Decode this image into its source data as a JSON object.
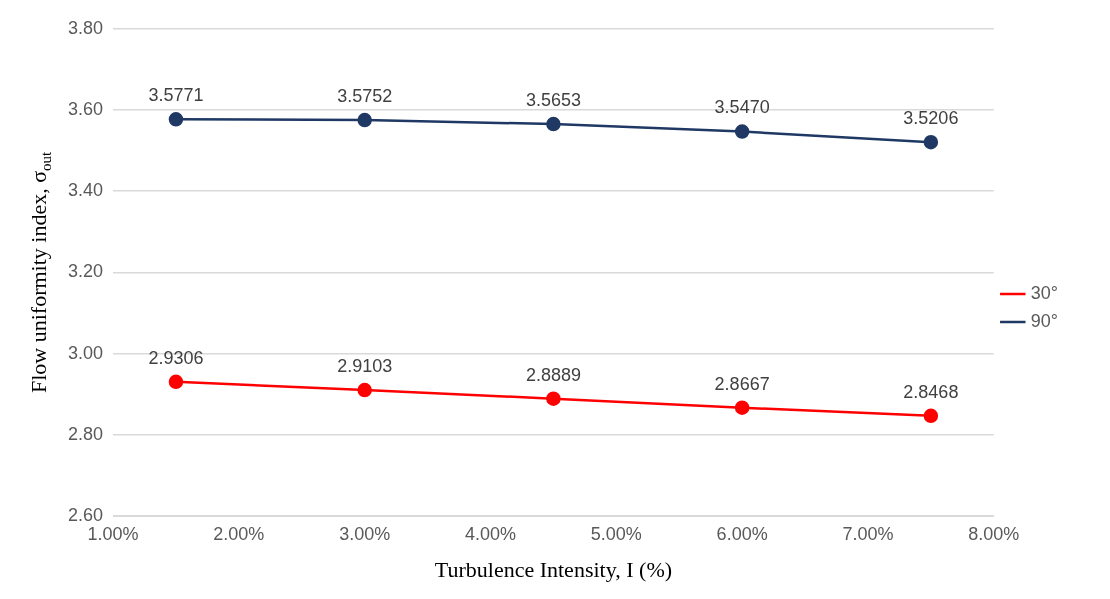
{
  "chart_data": {
    "type": "line",
    "xlabel": "Turbulence Intensity, I (%)",
    "ylabel": "Flow uniformity index, σ$_{out}$",
    "x": [
      1.5,
      3,
      4.5,
      6,
      7.5
    ],
    "series": [
      {
        "name": "30°",
        "color": "#ff0000",
        "values": [
          2.9306,
          2.9103,
          2.8889,
          2.8667,
          2.8468
        ],
        "value_labels": [
          "2.9306",
          "2.9103",
          "2.8889",
          "2.8667",
          "2.8468"
        ]
      },
      {
        "name": "90°",
        "color": "#1f3864",
        "values": [
          3.5771,
          3.5752,
          3.5653,
          3.547,
          3.5206
        ],
        "value_labels": [
          "3.5771",
          "3.5752",
          "3.5653",
          "3.5470",
          "3.5206"
        ]
      }
    ],
    "xlim": [
      1,
      8
    ],
    "xticks": [
      {
        "value": 1,
        "label": "1.00%"
      },
      {
        "value": 2,
        "label": "2.00%"
      },
      {
        "value": 3,
        "label": "3.00%"
      },
      {
        "value": 4,
        "label": "4.00%"
      },
      {
        "value": 5,
        "label": "5.00%"
      },
      {
        "value": 6,
        "label": "6.00%"
      },
      {
        "value": 7,
        "label": "7.00%"
      },
      {
        "value": 8,
        "label": "8.00%"
      }
    ],
    "ylim": [
      2.6,
      3.8
    ],
    "yticks": [
      {
        "value": 2.6,
        "label": "2.60"
      },
      {
        "value": 2.8,
        "label": "2.80"
      },
      {
        "value": 3,
        "label": "3.00"
      },
      {
        "value": 3.2,
        "label": "3.20"
      },
      {
        "value": 3.4,
        "label": "3.40"
      },
      {
        "value": 3.6,
        "label": "3.60"
      },
      {
        "value": 3.8,
        "label": "3.80"
      }
    ],
    "grid": "y",
    "legend": "right",
    "marker": "circle",
    "line_style": "solid"
  }
}
